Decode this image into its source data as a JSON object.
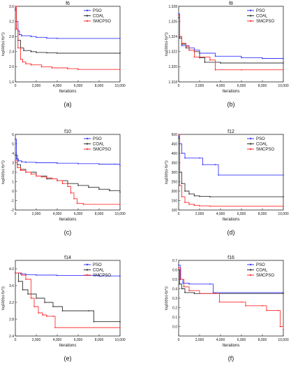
{
  "legend_labels": [
    "PSO",
    "COAL",
    "SMCPSO"
  ],
  "colors": {
    "PSO": "#3a3aff",
    "COAL": "#333333",
    "SMCPSO": "#ff3030",
    "axis": "#222222"
  },
  "chart_data": [
    {
      "type": "line",
      "title": "f6",
      "xlabel": "Iterations",
      "ylabel": "log10(f(x)-f(x*))",
      "xlim": [
        0,
        10000
      ],
      "ylim": [
        1.6,
        3.6
      ],
      "x_ticks": [
        0,
        2000,
        4000,
        6000,
        8000,
        10000
      ],
      "x_tick_labels": [
        "0",
        "2,000",
        "4,000",
        "6,000",
        "8,000",
        "10,000"
      ],
      "y_ticks": [
        1.6,
        2.0,
        2.4,
        2.8,
        3.2,
        3.6
      ],
      "y_tick_labels": [
        "1.6",
        "2.0",
        "2.4",
        "2.8",
        "3.2",
        "3.6"
      ],
      "panel_label": "(a)",
      "legend": "top-right",
      "series": [
        {
          "name": "PSO",
          "x": [
            0,
            100,
            250,
            400,
            600,
            1500,
            2000,
            3000,
            4000,
            10000
          ],
          "y": [
            3.55,
            3.2,
            2.95,
            2.85,
            2.82,
            2.8,
            2.78,
            2.76,
            2.75,
            2.75
          ]
        },
        {
          "name": "COAL",
          "x": [
            0,
            100,
            250,
            500,
            800,
            1500,
            2000,
            3000,
            4000,
            10000
          ],
          "y": [
            3.5,
            3.0,
            2.7,
            2.5,
            2.43,
            2.4,
            2.38,
            2.37,
            2.36,
            2.36
          ]
        },
        {
          "name": "SMCPSO",
          "x": [
            0,
            100,
            250,
            500,
            700,
            1000,
            1500,
            2500,
            3500,
            5000,
            6000,
            10000
          ],
          "y": [
            3.6,
            3.0,
            2.5,
            2.2,
            2.13,
            2.08,
            2.05,
            2.0,
            1.97,
            1.95,
            1.93,
            1.92
          ]
        }
      ]
    },
    {
      "type": "line",
      "title": "f8",
      "xlabel": "Iterations",
      "ylabel": "log10(f(x)-f(x*))",
      "xlim": [
        0,
        10000
      ],
      "ylim": [
        1.318,
        1.328
      ],
      "x_ticks": [
        0,
        2000,
        4000,
        6000,
        8000,
        10000
      ],
      "x_tick_labels": [
        "0",
        "2,000",
        "4,000",
        "6,000",
        "8,000",
        "10,000"
      ],
      "y_ticks": [
        1.318,
        1.32,
        1.322,
        1.324,
        1.326,
        1.328
      ],
      "y_tick_labels": [
        "1.318",
        "1.320",
        "1.322",
        "1.324",
        "1.326",
        "1.328"
      ],
      "panel_label": "(b)",
      "legend": "top-right",
      "series": [
        {
          "name": "PSO",
          "x": [
            0,
            100,
            300,
            1000,
            1500,
            2000,
            3500,
            6000,
            8000,
            10000
          ],
          "y": [
            1.327,
            1.324,
            1.3228,
            1.3225,
            1.3222,
            1.3218,
            1.3214,
            1.3212,
            1.3211,
            1.3211
          ]
        },
        {
          "name": "COAL",
          "x": [
            0,
            100,
            300,
            700,
            1000,
            1500,
            2000,
            2500,
            4000,
            10000
          ],
          "y": [
            1.3265,
            1.3238,
            1.323,
            1.3225,
            1.3222,
            1.322,
            1.3212,
            1.3206,
            1.3205,
            1.3205
          ]
        },
        {
          "name": "SMCPSO",
          "x": [
            0,
            100,
            300,
            700,
            1000,
            1500,
            3000,
            3500,
            6000,
            10000
          ],
          "y": [
            1.3268,
            1.324,
            1.3231,
            1.3227,
            1.3222,
            1.3213,
            1.3209,
            1.3196,
            1.3196,
            1.3196
          ]
        }
      ]
    },
    {
      "type": "line",
      "title": "f10",
      "xlabel": "Iterations",
      "ylabel": "log10(f(x)-f(x*))",
      "xlim": [
        0,
        10000
      ],
      "ylim": [
        -2,
        6
      ],
      "x_ticks": [
        0,
        2000,
        4000,
        6000,
        8000,
        10000
      ],
      "x_tick_labels": [
        "0",
        "2,000",
        "4,000",
        "6,000",
        "8,000",
        "10,000"
      ],
      "y_ticks": [
        -2,
        -1,
        0,
        1,
        2,
        3,
        4,
        5,
        6
      ],
      "y_tick_labels": [
        "-2",
        "-1",
        "0",
        "1",
        "2",
        "3",
        "4",
        "5",
        "6"
      ],
      "panel_label": "(c)",
      "legend": "top-right",
      "series": [
        {
          "name": "PSO",
          "x": [
            0,
            100,
            300,
            600,
            1000,
            2000,
            4000,
            6000,
            8000,
            9500,
            10000
          ],
          "y": [
            5.5,
            3.4,
            3.2,
            3.1,
            3.05,
            3.0,
            2.95,
            2.9,
            2.85,
            2.85,
            2.7
          ]
        },
        {
          "name": "COAL",
          "x": [
            0,
            200,
            500,
            1000,
            2000,
            3000,
            4000,
            5000,
            6000,
            7000,
            8000,
            9000,
            10000
          ],
          "y": [
            3.8,
            2.8,
            2.3,
            2.0,
            1.6,
            1.3,
            1.1,
            0.8,
            0.6,
            0.4,
            0.2,
            0.05,
            -0.1
          ]
        },
        {
          "name": "SMCPSO",
          "x": [
            0,
            200,
            500,
            1000,
            1500,
            2000,
            2500,
            3000,
            3500,
            4000,
            4500,
            5000,
            5300,
            5600,
            5900,
            6500,
            10000
          ],
          "y": [
            3.2,
            2.5,
            2.2,
            2.0,
            1.8,
            1.6,
            1.5,
            1.4,
            1.3,
            1.1,
            0.8,
            0.5,
            -0.2,
            -0.8,
            -1.3,
            -1.4,
            -1.4
          ]
        }
      ]
    },
    {
      "type": "line",
      "title": "f12",
      "xlabel": "Iterations",
      "ylabel": "log10(f(x)-f(x*))",
      "xlim": [
        0,
        10000
      ],
      "ylim": [
        100,
        500
      ],
      "x_ticks": [
        0,
        2000,
        4000,
        6000,
        8000,
        10000
      ],
      "x_tick_labels": [
        "0",
        "2,000",
        "4,000",
        "6,000",
        "8,000",
        "10,000"
      ],
      "y_ticks": [
        100,
        150,
        200,
        250,
        300,
        350,
        400,
        450,
        500
      ],
      "y_tick_labels": [
        "100",
        "150",
        "200",
        "250",
        "300",
        "350",
        "400",
        "450",
        "500"
      ],
      "panel_label": "(d)",
      "legend": "top-right",
      "series": [
        {
          "name": "PSO",
          "x": [
            0,
            100,
            300,
            600,
            2000,
            2300,
            3500,
            3800,
            10000
          ],
          "y": [
            490,
            450,
            400,
            375,
            375,
            340,
            340,
            285,
            285
          ]
        },
        {
          "name": "COAL",
          "x": [
            0,
            100,
            300,
            600,
            1000,
            1500,
            2000,
            3000,
            10000
          ],
          "y": [
            480,
            300,
            240,
            200,
            185,
            175,
            172,
            170,
            170
          ]
        },
        {
          "name": "SMCPSO",
          "x": [
            0,
            100,
            300,
            600,
            1000,
            1500,
            2000,
            3000,
            10000
          ],
          "y": [
            500,
            230,
            170,
            140,
            130,
            125,
            122,
            120,
            120
          ]
        }
      ]
    },
    {
      "type": "line",
      "title": "f14",
      "xlabel": "Iterations",
      "ylabel": "log10(f(x)-f(x*))",
      "xlim": [
        0,
        10000
      ],
      "ylim": [
        2.4,
        4.2
      ],
      "x_ticks": [
        0,
        2000,
        4000,
        6000,
        8000,
        10000
      ],
      "x_tick_labels": [
        "0",
        "2,000",
        "4,000",
        "6,000",
        "8,000",
        "10,000"
      ],
      "y_ticks": [
        2.4,
        2.8,
        3.2,
        3.6,
        4.0
      ],
      "y_tick_labels": [
        "2.4",
        "2.8",
        "3.2",
        "3.6",
        "4.0"
      ],
      "panel_label": "(e)",
      "legend": "top-right",
      "series": [
        {
          "name": "PSO",
          "x": [
            0,
            500,
            1000,
            2000,
            4000,
            8000,
            10000
          ],
          "y": [
            3.9,
            3.88,
            3.86,
            3.85,
            3.84,
            3.83,
            3.82
          ]
        },
        {
          "name": "COAL",
          "x": [
            0,
            300,
            700,
            1200,
            2000,
            2800,
            3600,
            4500,
            7000,
            7500,
            10000
          ],
          "y": [
            3.9,
            3.7,
            3.5,
            3.4,
            3.3,
            3.2,
            3.1,
            3.0,
            3.0,
            2.74,
            2.74
          ]
        },
        {
          "name": "SMCPSO",
          "x": [
            0,
            600,
            1000,
            1500,
            1800,
            2200,
            2600,
            3000,
            3600,
            3800,
            10000
          ],
          "y": [
            3.9,
            3.85,
            3.75,
            3.3,
            3.1,
            2.95,
            2.9,
            2.87,
            2.87,
            2.6,
            2.6
          ]
        }
      ]
    },
    {
      "type": "line",
      "title": "f16",
      "xlabel": "Iterations",
      "ylabel": "log10(f(x)-f(x*))",
      "xlim": [
        0,
        10000
      ],
      "ylim": [
        -0.1,
        0.7
      ],
      "x_ticks": [
        0,
        2000,
        4000,
        6000,
        8000,
        10000
      ],
      "x_tick_labels": [
        "0",
        "2,000",
        "4,000",
        "6,000",
        "8,000",
        "10,000"
      ],
      "y_ticks": [
        0.0,
        0.1,
        0.2,
        0.3,
        0.4,
        0.5,
        0.6,
        0.7
      ],
      "y_tick_labels": [
        "0.0",
        "0.1",
        "0.2",
        "0.3",
        "0.4",
        "0.5",
        "0.6",
        "0.7"
      ],
      "panel_label": "(f)",
      "legend": "top-right",
      "series": [
        {
          "name": "PSO",
          "x": [
            0,
            150,
            400,
            1000,
            3000,
            3300,
            10000
          ],
          "y": [
            0.65,
            0.5,
            0.46,
            0.45,
            0.45,
            0.36,
            0.36
          ]
        },
        {
          "name": "COAL",
          "x": [
            0,
            100,
            300,
            600,
            1500,
            10000
          ],
          "y": [
            0.6,
            0.45,
            0.4,
            0.36,
            0.35,
            0.35
          ]
        },
        {
          "name": "SMCPSO",
          "x": [
            0,
            200,
            500,
            1000,
            2000,
            3500,
            3900,
            6000,
            6400,
            8000,
            8400,
            9500,
            9700,
            10000
          ],
          "y": [
            0.62,
            0.5,
            0.42,
            0.38,
            0.35,
            0.35,
            0.26,
            0.26,
            0.22,
            0.22,
            0.17,
            0.17,
            0.0,
            -0.03
          ]
        }
      ]
    }
  ]
}
